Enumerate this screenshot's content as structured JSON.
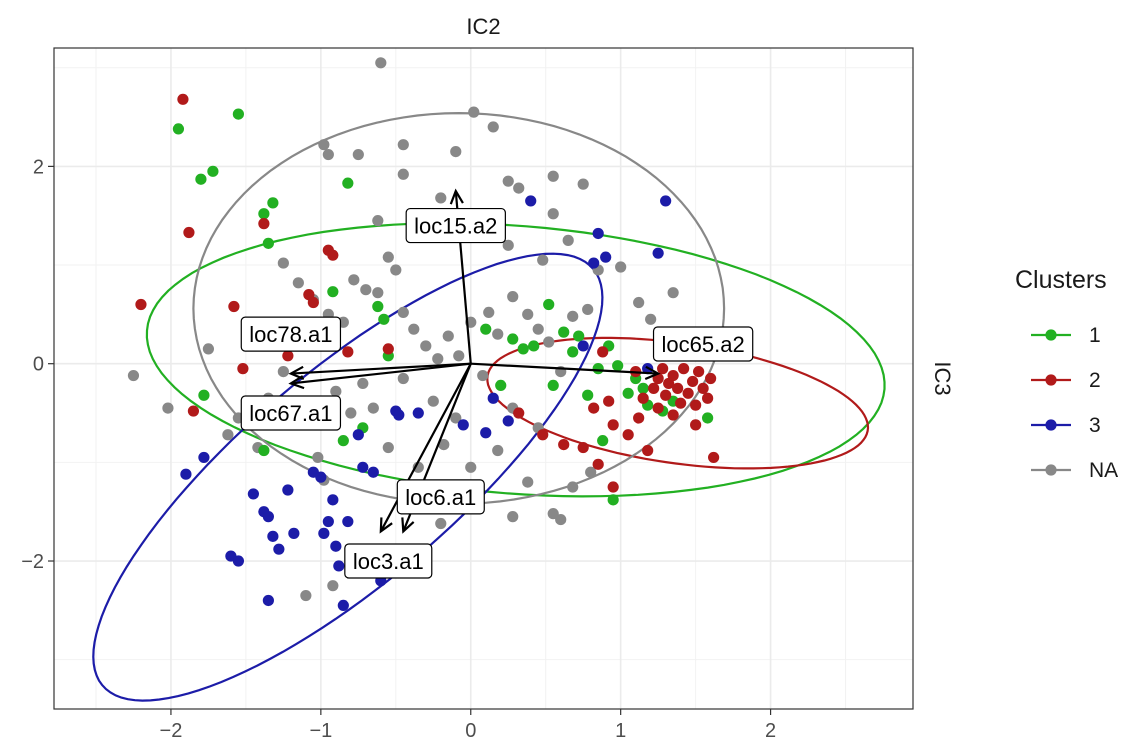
{
  "chart_data": {
    "type": "scatter",
    "title": "",
    "xlabel": "IC2",
    "ylabel": "IC3",
    "xlim": [
      -2.78,
      2.95
    ],
    "ylim": [
      -3.5,
      3.2
    ],
    "x_ticks": [
      -2,
      -1,
      0,
      1,
      2
    ],
    "y_ticks": [
      -2,
      0,
      2
    ],
    "x_tick_labels": [
      "−2",
      "−1",
      "0",
      "1",
      "2"
    ],
    "y_tick_labels": [
      "−2",
      "0",
      "2"
    ],
    "grid": true,
    "legend": {
      "title": "Clusters",
      "position": "right",
      "entries": [
        "1",
        "2",
        "3",
        "NA"
      ]
    },
    "colors": {
      "1": "#22b022",
      "2": "#b11a1a",
      "3": "#1c1ca8",
      "NA": "#888888"
    },
    "arrows": [
      {
        "label": "loc15.a2",
        "x": -0.1,
        "y": 1.75
      },
      {
        "label": "loc78.a1",
        "x": -1.2,
        "y": -0.1
      },
      {
        "label": "loc67.a1",
        "x": -1.2,
        "y": -0.2
      },
      {
        "label": "loc65.a2",
        "x": 1.25,
        "y": -0.1
      },
      {
        "label": "loc6.a1",
        "x": -0.45,
        "y": -1.7
      },
      {
        "label": "loc3.a1",
        "x": -0.6,
        "y": -1.7
      }
    ],
    "label_positions": {
      "loc15.a2": [
        -0.1,
        1.4
      ],
      "loc78.a1": [
        -1.2,
        0.3
      ],
      "loc67.a1": [
        -1.2,
        -0.5
      ],
      "loc65.a2": [
        1.55,
        0.2
      ],
      "loc6.a1": [
        -0.2,
        -1.35
      ],
      "loc3.a1": [
        -0.55,
        -2.0
      ]
    },
    "ellipses": [
      {
        "cluster": "1",
        "cx": 0.3,
        "cy": 0.04,
        "rx": 2.48,
        "ry": 1.35,
        "angle_deg": -8.5
      },
      {
        "cluster": "2",
        "cx": 1.38,
        "cy": -0.4,
        "rx": 1.3,
        "ry": 0.6,
        "angle_deg": -14
      },
      {
        "cluster": "3",
        "cx": -0.82,
        "cy": -1.15,
        "rx": 2.7,
        "ry": 0.85,
        "angle_deg": 55
      },
      {
        "cluster": "NA",
        "cx": -0.08,
        "cy": 0.56,
        "rx": 1.77,
        "ry": 1.98,
        "angle_deg": 0
      }
    ],
    "series": [
      {
        "name": "1",
        "points": [
          [
            -1.95,
            2.38
          ],
          [
            -1.55,
            2.53
          ],
          [
            -1.8,
            1.87
          ],
          [
            -1.72,
            1.95
          ],
          [
            -1.32,
            1.63
          ],
          [
            -1.38,
            1.52
          ],
          [
            -1.35,
            1.22
          ],
          [
            -0.82,
            1.83
          ],
          [
            -0.92,
            0.73
          ],
          [
            -0.62,
            0.58
          ],
          [
            -0.58,
            0.45
          ],
          [
            -1.78,
            -0.32
          ],
          [
            -1.38,
            -0.88
          ],
          [
            -0.85,
            -0.78
          ],
          [
            -0.55,
            0.08
          ],
          [
            -0.72,
            -0.65
          ],
          [
            0.28,
            0.25
          ],
          [
            0.35,
            0.15
          ],
          [
            0.42,
            0.18
          ],
          [
            0.55,
            -0.22
          ],
          [
            0.62,
            0.32
          ],
          [
            0.72,
            0.28
          ],
          [
            0.85,
            -0.05
          ],
          [
            0.92,
            0.18
          ],
          [
            0.98,
            -0.02
          ],
          [
            1.05,
            -0.3
          ],
          [
            1.15,
            -0.25
          ],
          [
            1.18,
            -0.42
          ],
          [
            1.28,
            -0.48
          ],
          [
            1.35,
            -0.38
          ],
          [
            1.45,
            0.12
          ],
          [
            1.58,
            -0.55
          ],
          [
            0.88,
            -0.78
          ],
          [
            0.95,
            -1.38
          ],
          [
            0.78,
            -0.32
          ],
          [
            0.2,
            -0.22
          ],
          [
            0.1,
            0.35
          ],
          [
            0.52,
            0.6
          ],
          [
            0.68,
            0.12
          ],
          [
            1.1,
            -0.15
          ]
        ]
      },
      {
        "name": "2",
        "points": [
          [
            -1.92,
            2.68
          ],
          [
            -1.88,
            1.33
          ],
          [
            -2.2,
            0.6
          ],
          [
            -1.85,
            -0.48
          ],
          [
            -1.58,
            0.58
          ],
          [
            -1.38,
            1.42
          ],
          [
            -1.08,
            0.7
          ],
          [
            -1.05,
            0.62
          ],
          [
            -0.95,
            1.15
          ],
          [
            -0.92,
            1.1
          ],
          [
            -1.22,
            0.08
          ],
          [
            -1.15,
            -0.42
          ],
          [
            -1.52,
            -0.05
          ],
          [
            -0.82,
            0.12
          ],
          [
            -0.55,
            0.15
          ],
          [
            0.62,
            -0.82
          ],
          [
            0.75,
            -0.85
          ],
          [
            0.82,
            -0.45
          ],
          [
            0.88,
            0.12
          ],
          [
            0.92,
            -0.38
          ],
          [
            0.95,
            -0.62
          ],
          [
            1.05,
            -0.72
          ],
          [
            1.12,
            -0.55
          ],
          [
            1.18,
            -0.88
          ],
          [
            1.22,
            -0.25
          ],
          [
            1.25,
            -0.15
          ],
          [
            1.28,
            -0.05
          ],
          [
            1.3,
            -0.32
          ],
          [
            1.32,
            -0.2
          ],
          [
            1.35,
            -0.12
          ],
          [
            1.38,
            -0.25
          ],
          [
            1.4,
            -0.4
          ],
          [
            1.42,
            -0.05
          ],
          [
            1.45,
            -0.3
          ],
          [
            1.48,
            -0.18
          ],
          [
            1.5,
            -0.42
          ],
          [
            1.52,
            -0.08
          ],
          [
            1.55,
            -0.25
          ],
          [
            1.58,
            -0.35
          ],
          [
            1.6,
            -0.15
          ],
          [
            1.35,
            -0.52
          ],
          [
            1.25,
            -0.45
          ],
          [
            1.15,
            -0.35
          ],
          [
            1.1,
            -0.08
          ],
          [
            1.62,
            -0.95
          ],
          [
            1.5,
            -0.62
          ],
          [
            0.95,
            -1.25
          ],
          [
            0.85,
            -1.02
          ],
          [
            0.32,
            -0.5
          ],
          [
            0.48,
            -0.72
          ]
        ]
      },
      {
        "name": "3",
        "points": [
          [
            -1.9,
            -1.12
          ],
          [
            -1.78,
            -0.95
          ],
          [
            -1.6,
            -1.95
          ],
          [
            -1.55,
            -2.0
          ],
          [
            -1.45,
            -1.32
          ],
          [
            -1.38,
            -1.5
          ],
          [
            -1.35,
            -1.55
          ],
          [
            -1.35,
            -2.4
          ],
          [
            -1.32,
            -1.75
          ],
          [
            -1.28,
            -1.88
          ],
          [
            -1.22,
            -1.28
          ],
          [
            -1.18,
            -1.72
          ],
          [
            -1.05,
            -1.1
          ],
          [
            -1.0,
            -1.15
          ],
          [
            -0.98,
            -1.72
          ],
          [
            -0.95,
            -1.6
          ],
          [
            -0.92,
            -1.38
          ],
          [
            -0.9,
            -1.85
          ],
          [
            -0.88,
            -2.05
          ],
          [
            -0.85,
            -2.45
          ],
          [
            -0.82,
            -1.6
          ],
          [
            -0.75,
            -0.72
          ],
          [
            -0.72,
            -1.05
          ],
          [
            -0.65,
            -1.1
          ],
          [
            -0.6,
            -2.2
          ],
          [
            -0.5,
            -0.48
          ],
          [
            -0.48,
            -0.52
          ],
          [
            -0.35,
            -0.5
          ],
          [
            -0.05,
            -0.62
          ],
          [
            0.1,
            -0.7
          ],
          [
            0.15,
            -0.35
          ],
          [
            0.25,
            -0.58
          ],
          [
            0.4,
            1.65
          ],
          [
            0.85,
            1.32
          ],
          [
            0.82,
            1.02
          ],
          [
            0.9,
            1.08
          ],
          [
            1.25,
            1.12
          ],
          [
            1.3,
            1.65
          ],
          [
            0.75,
            0.18
          ],
          [
            1.18,
            -0.05
          ]
        ]
      },
      {
        "name": "NA",
        "points": [
          [
            -0.6,
            3.05
          ],
          [
            0.02,
            2.55
          ],
          [
            0.15,
            2.4
          ],
          [
            -0.98,
            2.22
          ],
          [
            -0.95,
            2.12
          ],
          [
            -0.75,
            2.12
          ],
          [
            -0.45,
            2.22
          ],
          [
            -0.1,
            2.15
          ],
          [
            -0.45,
            1.92
          ],
          [
            -0.2,
            1.68
          ],
          [
            0.25,
            1.85
          ],
          [
            0.55,
            1.9
          ],
          [
            0.32,
            1.78
          ],
          [
            0.75,
            1.82
          ],
          [
            0.55,
            1.52
          ],
          [
            0.1,
            1.42
          ],
          [
            0.25,
            1.2
          ],
          [
            0.48,
            1.05
          ],
          [
            0.65,
            1.25
          ],
          [
            0.85,
            0.95
          ],
          [
            1.0,
            0.98
          ],
          [
            1.12,
            0.62
          ],
          [
            1.2,
            0.45
          ],
          [
            1.35,
            0.72
          ],
          [
            -1.25,
            1.02
          ],
          [
            -1.15,
            0.82
          ],
          [
            -1.05,
            0.65
          ],
          [
            -0.95,
            0.5
          ],
          [
            -0.85,
            0.42
          ],
          [
            -0.78,
            0.85
          ],
          [
            -0.7,
            0.75
          ],
          [
            -0.62,
            0.72
          ],
          [
            -0.55,
            1.08
          ],
          [
            -0.5,
            0.95
          ],
          [
            -0.45,
            0.52
          ],
          [
            -0.38,
            0.35
          ],
          [
            -0.3,
            0.18
          ],
          [
            -0.22,
            0.05
          ],
          [
            -0.15,
            0.28
          ],
          [
            -0.08,
            0.08
          ],
          [
            0.0,
            0.42
          ],
          [
            0.12,
            0.52
          ],
          [
            0.18,
            0.3
          ],
          [
            0.28,
            0.68
          ],
          [
            0.38,
            0.5
          ],
          [
            0.45,
            0.35
          ],
          [
            0.52,
            0.22
          ],
          [
            0.6,
            -0.08
          ],
          [
            0.68,
            0.48
          ],
          [
            0.78,
            0.55
          ],
          [
            -1.62,
            -0.72
          ],
          [
            -1.48,
            -0.62
          ],
          [
            -1.35,
            -0.35
          ],
          [
            -1.25,
            -0.08
          ],
          [
            -1.12,
            -0.58
          ],
          [
            -1.02,
            -0.95
          ],
          [
            -0.9,
            -0.28
          ],
          [
            -0.8,
            -0.5
          ],
          [
            -0.72,
            -0.2
          ],
          [
            -0.65,
            -0.45
          ],
          [
            -0.55,
            -0.85
          ],
          [
            -0.45,
            -0.15
          ],
          [
            -0.35,
            -1.05
          ],
          [
            -0.25,
            -0.38
          ],
          [
            -0.18,
            -0.82
          ],
          [
            -0.1,
            -0.55
          ],
          [
            0.0,
            -1.05
          ],
          [
            0.08,
            -0.12
          ],
          [
            0.18,
            -0.88
          ],
          [
            0.28,
            -0.45
          ],
          [
            0.38,
            -1.2
          ],
          [
            0.45,
            -0.65
          ],
          [
            0.55,
            -1.52
          ],
          [
            0.68,
            -1.25
          ],
          [
            0.8,
            -1.1
          ],
          [
            0.28,
            -1.55
          ],
          [
            -0.12,
            -1.28
          ],
          [
            -0.42,
            -1.9
          ],
          [
            -0.98,
            -1.18
          ],
          [
            -1.1,
            -2.35
          ],
          [
            -0.92,
            -2.25
          ],
          [
            -0.2,
            -1.62
          ],
          [
            0.05,
            -1.45
          ],
          [
            0.6,
            -1.58
          ],
          [
            -1.42,
            -0.85
          ],
          [
            -1.55,
            -0.55
          ],
          [
            -2.25,
            -0.12
          ],
          [
            -2.02,
            -0.45
          ],
          [
            -1.75,
            0.15
          ],
          [
            -0.62,
            1.45
          ]
        ]
      }
    ]
  }
}
